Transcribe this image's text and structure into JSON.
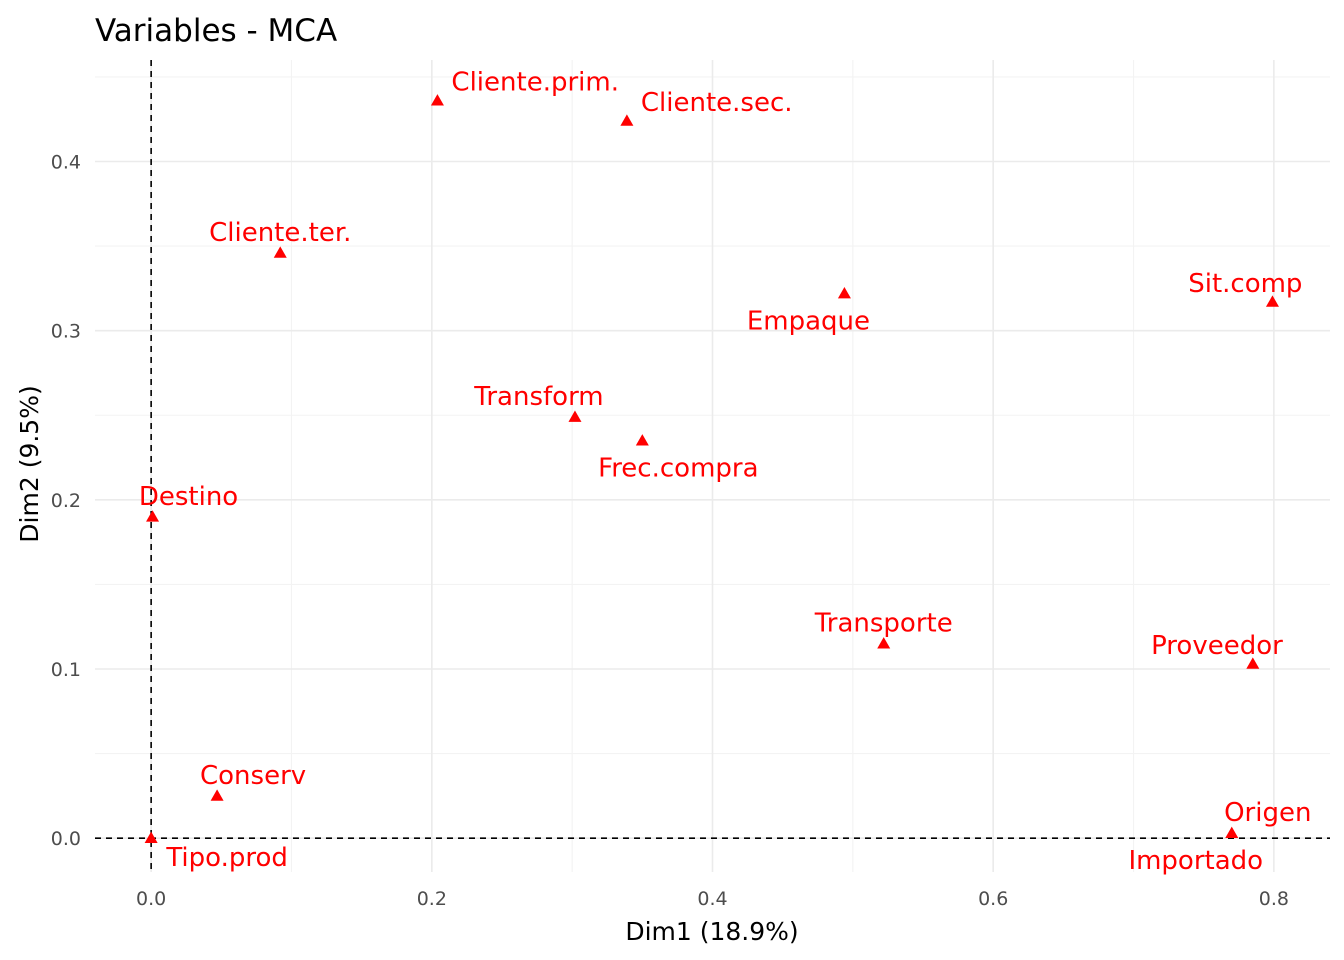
{
  "chart_data": {
    "type": "scatter",
    "title": "Variables - MCA",
    "xlabel": "Dim1 (18.9%)",
    "ylabel": "Dim2 (9.5%)",
    "xlim": [
      -0.04,
      0.84
    ],
    "ylim": [
      -0.02,
      0.46
    ],
    "x_ticks": [
      0.0,
      0.2,
      0.4,
      0.6,
      0.8
    ],
    "x_tick_labels": [
      "0.0",
      "0.2",
      "0.4",
      "0.6",
      "0.8"
    ],
    "y_ticks": [
      0.0,
      0.1,
      0.2,
      0.3,
      0.4
    ],
    "y_tick_labels": [
      "0.0",
      "0.1",
      "0.2",
      "0.3",
      "0.4"
    ],
    "grid": true,
    "reference_lines": {
      "x": 0,
      "y": 0,
      "style": "dashed"
    },
    "marker": "triangle",
    "color": "#ff0000",
    "points": [
      {
        "label": "Cliente.prim.",
        "x": 0.204,
        "y": 0.436,
        "label_pos": "upper-right"
      },
      {
        "label": "Cliente.sec.",
        "x": 0.339,
        "y": 0.424,
        "label_pos": "upper-right"
      },
      {
        "label": "Cliente.ter.",
        "x": 0.092,
        "y": 0.346,
        "label_pos": "above"
      },
      {
        "label": "Sit.comp",
        "x": 0.799,
        "y": 0.317,
        "label_pos": "upper-left"
      },
      {
        "label": "Empaque",
        "x": 0.494,
        "y": 0.322,
        "label_pos": "lower-left"
      },
      {
        "label": "Transform",
        "x": 0.302,
        "y": 0.249,
        "label_pos": "above-left"
      },
      {
        "label": "Frec.compra",
        "x": 0.35,
        "y": 0.235,
        "label_pos": "below"
      },
      {
        "label": "Destino",
        "x": 0.001,
        "y": 0.19,
        "label_pos": "above-right"
      },
      {
        "label": "Transporte",
        "x": 0.522,
        "y": 0.115,
        "label_pos": "above"
      },
      {
        "label": "Proveedor",
        "x": 0.785,
        "y": 0.103,
        "label_pos": "upper-left"
      },
      {
        "label": "Conserv",
        "x": 0.047,
        "y": 0.025,
        "label_pos": "above-right"
      },
      {
        "label": "Tipo.prod",
        "x": 0.0,
        "y": 0.0,
        "label_pos": "lower-right"
      },
      {
        "label": "Origen",
        "x": 0.77,
        "y": 0.003,
        "label_pos": "above-right"
      },
      {
        "label": "Importado",
        "x": 0.77,
        "y": 0.003,
        "label_pos": "lower-left"
      }
    ]
  }
}
